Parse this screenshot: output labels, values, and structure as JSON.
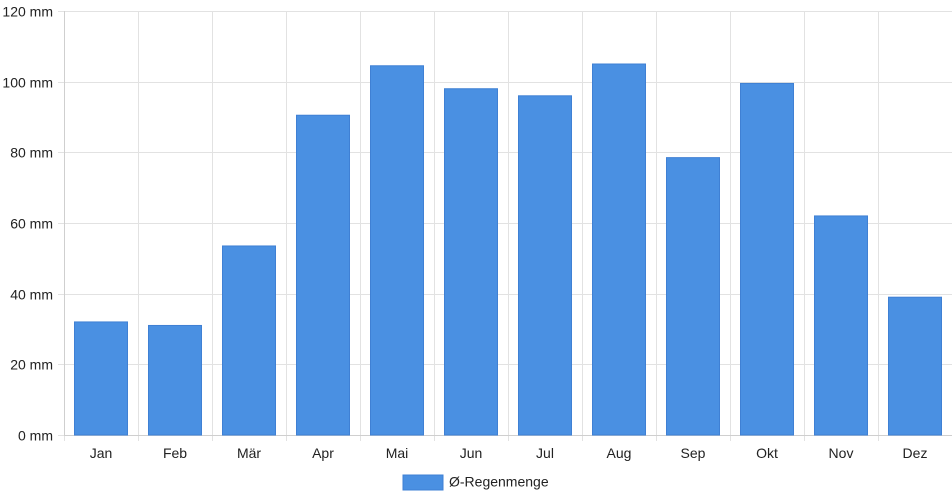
{
  "chart_data": {
    "type": "bar",
    "title": "",
    "xlabel": "",
    "ylabel": "",
    "categories": [
      "Jan",
      "Feb",
      "Mär",
      "Apr",
      "Mai",
      "Jun",
      "Jul",
      "Aug",
      "Sep",
      "Okt",
      "Nov",
      "Dez"
    ],
    "series": [
      {
        "name": "Ø-Regenmenge",
        "color": "#4a90e2",
        "values": [
          32,
          31,
          53.5,
          90.5,
          104.5,
          98,
          96,
          105,
          78.5,
          99.5,
          62,
          39
        ]
      }
    ],
    "ylim": [
      0,
      120
    ],
    "yticks": [
      0,
      20,
      40,
      60,
      80,
      100,
      120
    ],
    "ytick_labels": [
      "0 mm",
      "20 mm",
      "40 mm",
      "60 mm",
      "80 mm",
      "100 mm",
      "120 mm"
    ],
    "grid": true,
    "legend_position": "bottom-center"
  }
}
